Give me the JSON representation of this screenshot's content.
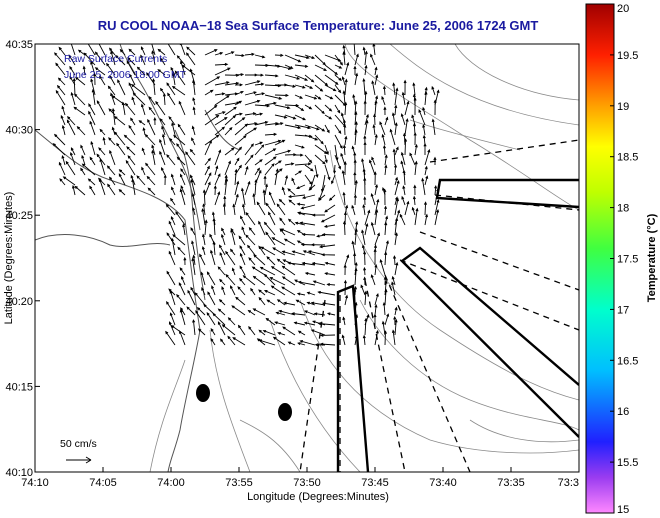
{
  "chart_data": {
    "type": "vector-field-map",
    "title": "RU COOL   NOAA−18  Sea Surface Temperature:  June 25, 2006 1724 GMT",
    "xlabel": "Longitude (Degrees:Minutes)",
    "ylabel": "Latitude (Degrees:Minutes)",
    "x_ticks": [
      "74:10",
      "74:05",
      "74:00",
      "73:55",
      "73:50",
      "73:45",
      "73:40",
      "73:35",
      "73:3"
    ],
    "y_ticks": [
      "40:35",
      "40:30",
      "40:25",
      "40:20",
      "40:15",
      "40:10"
    ],
    "xlim": [
      -74.1667,
      -73.5
    ],
    "ylim": [
      40.1667,
      40.5833
    ],
    "colorbar": {
      "label": "Temperature (°C)",
      "ticks": [
        "20",
        "19.5",
        "19",
        "18.5",
        "18",
        "17.5",
        "17",
        "16.5",
        "16",
        "15.5",
        "15"
      ],
      "range": [
        15,
        20
      ]
    },
    "annotations": [
      "Raw Surface Currents",
      "June 25, 2006 18:00 GMT"
    ],
    "scale_label": "50 cm/s",
    "grid": false
  },
  "colors": {
    "title": "#1a1aa0",
    "annotation": "#1a1aa0",
    "coast": "#666666",
    "contour": "#888888",
    "vector": "#000000"
  }
}
